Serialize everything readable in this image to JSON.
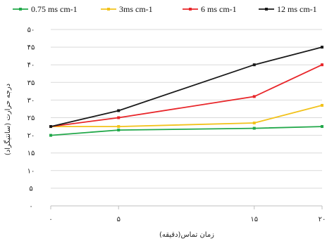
{
  "chart_data": {
    "type": "line",
    "x": [
      0,
      5,
      15,
      20
    ],
    "x_tick_labels": [
      "۰",
      "۵",
      "۱۵",
      "۲۰"
    ],
    "ylim": [
      0,
      50
    ],
    "y_ticks": [
      0,
      5,
      10,
      15,
      20,
      25,
      30,
      35,
      40,
      45,
      50
    ],
    "y_tick_labels": [
      "۰",
      "۵",
      "۱۰",
      "۱۵",
      "۲۰",
      "۲۵",
      "۳۰",
      "۳۵",
      "۴۰",
      "۴۵",
      "۵۰"
    ],
    "xlabel": "زمان تماس(دقیقه)",
    "ylabel": "درجه حرارت (سانتیگراد)",
    "grid": "horizontal",
    "legend_position": "top",
    "series": [
      {
        "name": "0.75 ms cm-1",
        "color": "#22a84a",
        "values": [
          20,
          21.5,
          22,
          22.5
        ]
      },
      {
        "name": "3ms cm-1",
        "color": "#f2c21b",
        "values": [
          22.5,
          22.5,
          23.5,
          28.5
        ]
      },
      {
        "name": "6 ms cm-1",
        "color": "#e8262a",
        "values": [
          22.5,
          25,
          31,
          40
        ]
      },
      {
        "name": "12 ms cm-1",
        "color": "#1a1a1a",
        "values": [
          22.5,
          27,
          40,
          45
        ]
      }
    ]
  }
}
